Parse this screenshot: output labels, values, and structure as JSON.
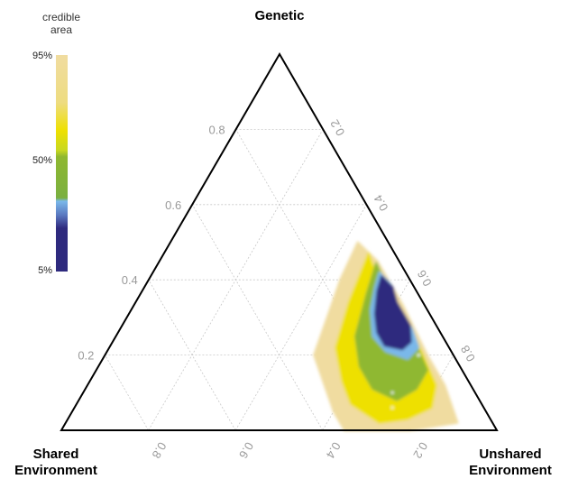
{
  "chart_data": {
    "type": "ternary-density",
    "vertices": {
      "top": "Genetic",
      "bottom_left": [
        "Shared",
        "Environment"
      ],
      "bottom_right": [
        "Unshared",
        "Environment"
      ]
    },
    "axis_ticks": [
      0.2,
      0.4,
      0.6,
      0.8
    ],
    "left_tick_labels": [
      "0.2",
      "0.4",
      "0.6",
      "0.8"
    ],
    "right_tick_labels": [
      "0.2",
      "0.4",
      "0.6",
      "0.8"
    ],
    "bottom_tick_labels": [
      "0.2",
      "0.4",
      "0.6",
      "0.8"
    ],
    "grid": true,
    "legend": {
      "title": [
        "credible",
        "area"
      ],
      "ticks": [
        "95%",
        "50%",
        "5%"
      ],
      "placement": "top-left",
      "colors": {
        "95": "#f0dca0",
        "75": "#eee000",
        "50": "#8fb830",
        "25": "#7ab8ea",
        "5": "#2e2a7e"
      }
    },
    "density_mode": {
      "genetic": 0.4,
      "unshared_environment": 0.56,
      "shared_environment": 0.04
    },
    "credible_regions": [
      {
        "level": "95%",
        "color": "#f0dca0",
        "points": [
          [
            0.5,
            0.43
          ],
          [
            0.45,
            0.5
          ],
          [
            0.33,
            0.62
          ],
          [
            0.2,
            0.74
          ],
          [
            0.12,
            0.82
          ],
          [
            0.07,
            0.86
          ],
          [
            0.02,
            0.9
          ],
          [
            0.0,
            0.8
          ],
          [
            0.0,
            0.65
          ],
          [
            0.05,
            0.6
          ],
          [
            0.1,
            0.56
          ],
          [
            0.2,
            0.48
          ],
          [
            0.3,
            0.46
          ],
          [
            0.4,
            0.44
          ]
        ]
      },
      {
        "level": "75%",
        "color": "#eee000",
        "points": [
          [
            0.47,
            0.47
          ],
          [
            0.42,
            0.51
          ],
          [
            0.32,
            0.62
          ],
          [
            0.2,
            0.73
          ],
          [
            0.12,
            0.8
          ],
          [
            0.06,
            0.82
          ],
          [
            0.03,
            0.78
          ],
          [
            0.02,
            0.72
          ],
          [
            0.07,
            0.63
          ],
          [
            0.13,
            0.58
          ],
          [
            0.22,
            0.52
          ],
          [
            0.34,
            0.49
          ]
        ]
      },
      {
        "level": "50%",
        "color": "#8fb830",
        "points": [
          [
            0.445,
            0.5
          ],
          [
            0.4,
            0.54
          ],
          [
            0.33,
            0.6
          ],
          [
            0.24,
            0.69
          ],
          [
            0.16,
            0.76
          ],
          [
            0.11,
            0.76
          ],
          [
            0.08,
            0.73
          ],
          [
            0.11,
            0.66
          ],
          [
            0.17,
            0.6
          ],
          [
            0.25,
            0.55
          ],
          [
            0.36,
            0.52
          ]
        ]
      },
      {
        "level": "25%",
        "color": "#7ab8ea",
        "points": [
          [
            0.42,
            0.52
          ],
          [
            0.39,
            0.56
          ],
          [
            0.34,
            0.6
          ],
          [
            0.27,
            0.67
          ],
          [
            0.22,
            0.71
          ],
          [
            0.19,
            0.7
          ],
          [
            0.21,
            0.64
          ],
          [
            0.25,
            0.59
          ],
          [
            0.32,
            0.55
          ],
          [
            0.38,
            0.53
          ]
        ]
      },
      {
        "level": "5%",
        "color": "#2e2a7e",
        "points": [
          [
            0.41,
            0.53
          ],
          [
            0.38,
            0.57
          ],
          [
            0.34,
            0.6
          ],
          [
            0.28,
            0.66
          ],
          [
            0.235,
            0.685
          ],
          [
            0.215,
            0.675
          ],
          [
            0.225,
            0.63
          ],
          [
            0.26,
            0.595
          ],
          [
            0.31,
            0.565
          ],
          [
            0.37,
            0.54
          ]
        ]
      }
    ]
  }
}
